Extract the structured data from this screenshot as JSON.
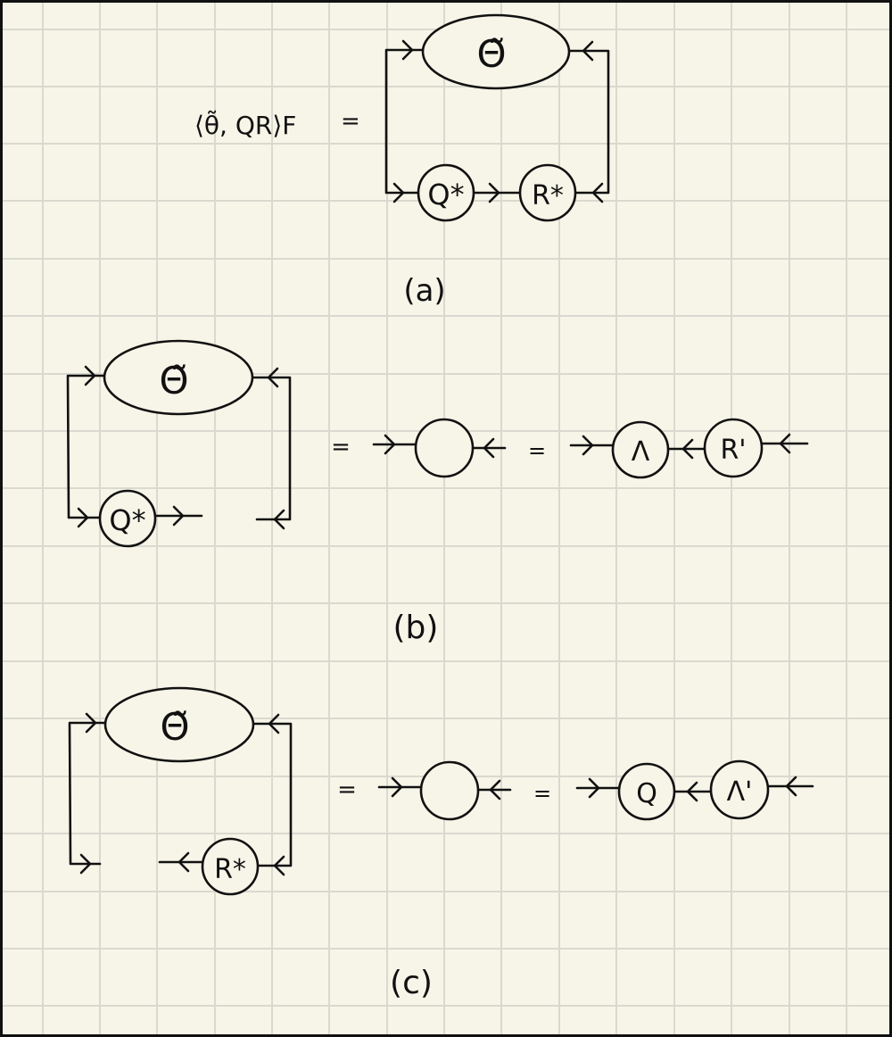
{
  "panels": {
    "a": {
      "caption": "(a)",
      "lhs_expression": "⟨θ̃, QR⟩F",
      "equals": "=",
      "ellipse_label": "Θ̃",
      "node1_label": "Q*",
      "node2_label": "R*"
    },
    "b": {
      "caption": "(b)",
      "ellipse_label": "Θ̃",
      "node_label": "Q*",
      "equals_1": "=",
      "equals_2": "=",
      "empty_node_label": "",
      "result_node1_label": "Λ",
      "result_node2_label": "R'"
    },
    "c": {
      "caption": "(c)",
      "ellipse_label": "Θ̃",
      "node_label": "R*",
      "equals_1": "=",
      "equals_2": "=",
      "empty_node_label": "",
      "result_node1_label": "Q",
      "result_node2_label": "Λ'"
    }
  }
}
